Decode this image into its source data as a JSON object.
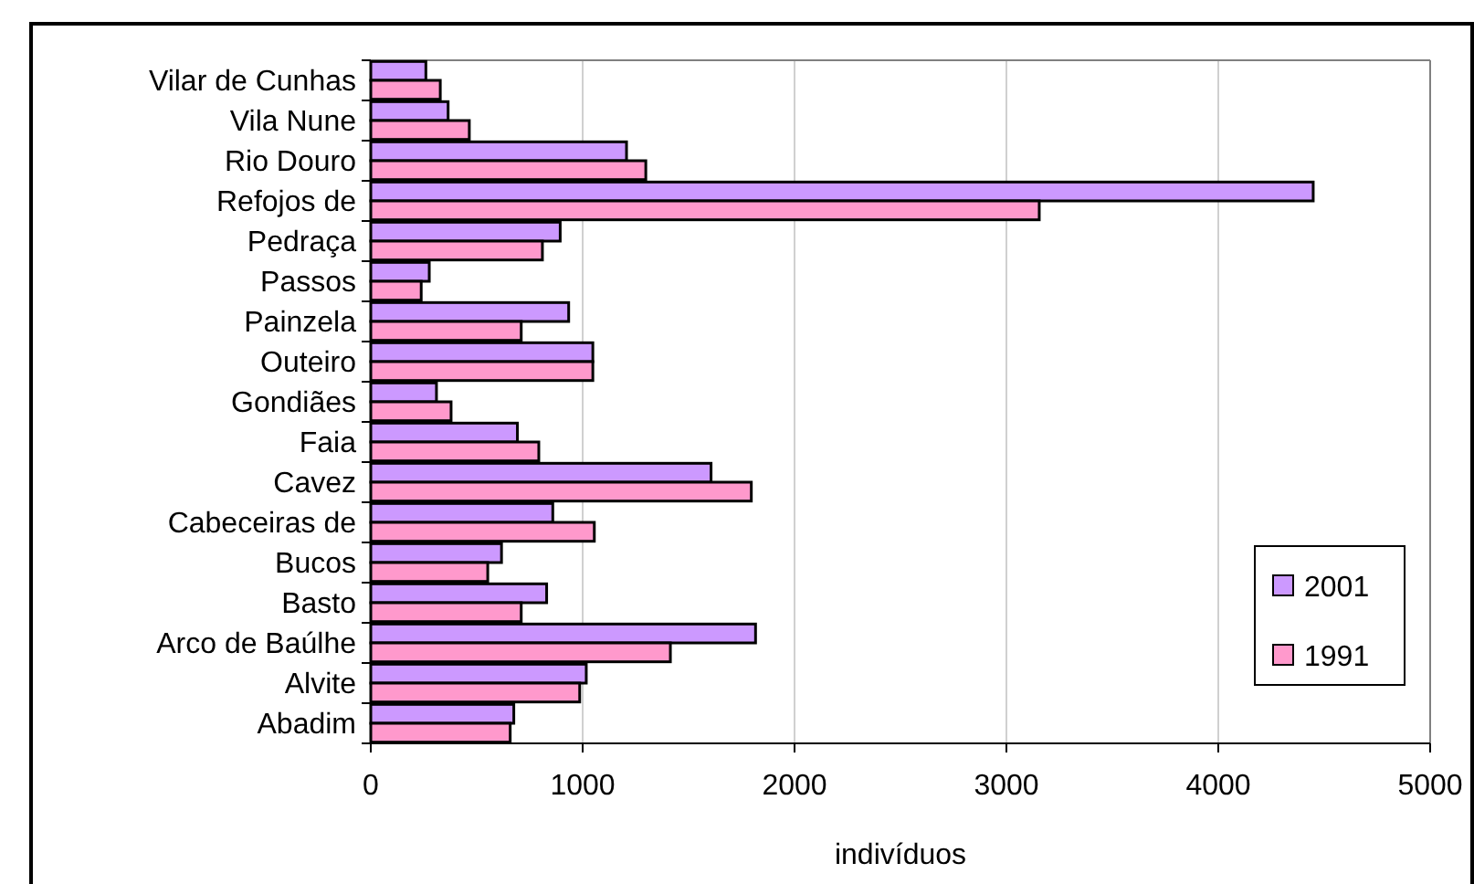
{
  "chart_data": {
    "type": "bar",
    "orientation": "horizontal",
    "xlabel": "indivíduos",
    "categories": [
      "Vilar de Cunhas",
      "Vila Nune",
      "Rio Douro",
      "Refojos de",
      "Pedraça",
      "Passos",
      "Painzela",
      "Outeiro",
      "Gondiães",
      "Faia",
      "Cavez",
      "Cabeceiras de",
      "Bucos",
      "Basto",
      "Arco de Baúlhe",
      "Alvite",
      "Abadim"
    ],
    "series": [
      {
        "name": "2001",
        "color": "#cc99ff",
        "values": [
          260,
          365,
          1207,
          4448,
          894,
          276,
          934,
          1048,
          310,
          692,
          1606,
          859,
          617,
          830,
          1816,
          1017,
          675
        ]
      },
      {
        "name": "1991",
        "color": "#ff99cc",
        "values": [
          328,
          465,
          1298,
          3155,
          810,
          238,
          710,
          1048,
          379,
          793,
          1796,
          1055,
          552,
          710,
          1414,
          986,
          658
        ]
      }
    ],
    "xlim": [
      0,
      5000
    ],
    "xticks": [
      0,
      1000,
      2000,
      3000,
      4000,
      5000
    ],
    "grid": "x",
    "legend": "bottom right"
  }
}
